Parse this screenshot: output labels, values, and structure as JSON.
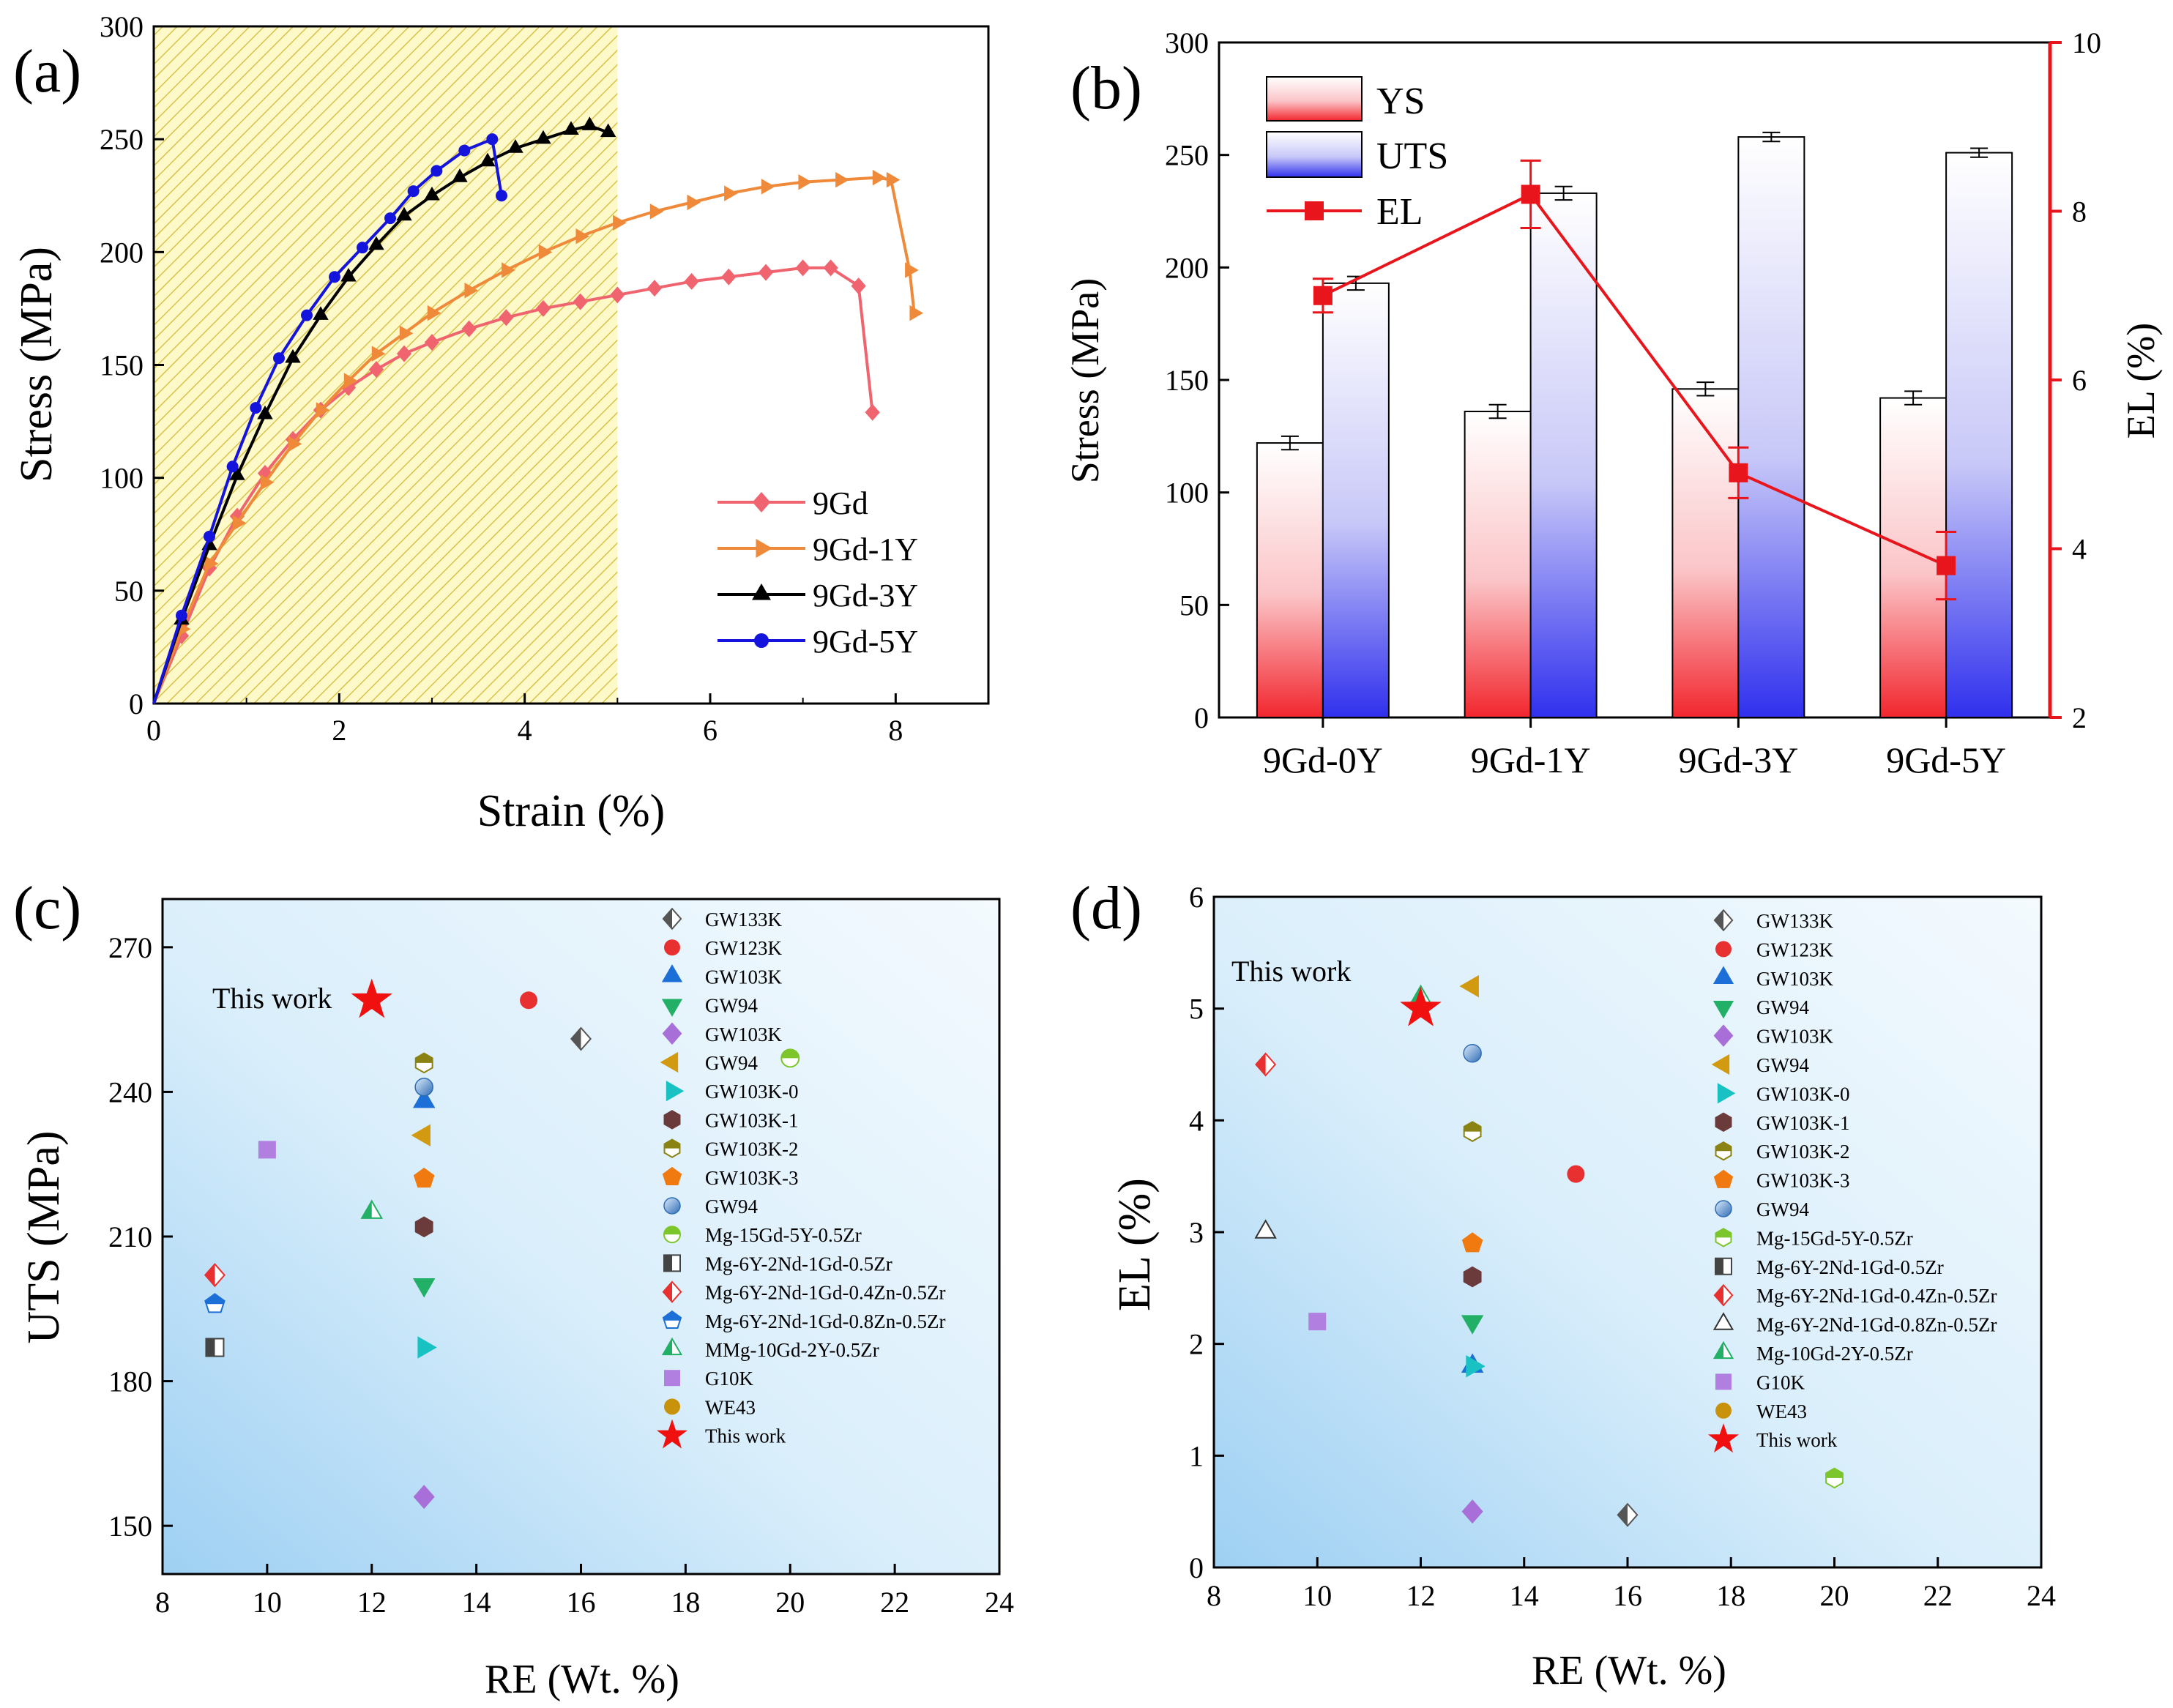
{
  "colors": {
    "gd9": "#F06470",
    "gd1y": "#EE8A3A",
    "gd3y": "#000000",
    "gd5y": "#1414DD",
    "el": "#E8161C",
    "hatch_bg": "#FDF9C8",
    "hatch_line": "#D9C24A"
  },
  "chart_data": [
    {
      "panel": "(a)",
      "type": "line",
      "xlabel": "Strain (%)",
      "ylabel": "Stress (MPa)",
      "xlim": [
        0,
        9
      ],
      "ylim": [
        0,
        300
      ],
      "xticks": [
        0,
        2,
        4,
        6,
        8
      ],
      "yticks": [
        0,
        50,
        100,
        150,
        200,
        250,
        300
      ],
      "shaded_region": [
        0,
        5
      ],
      "legend_position": "bottom-right",
      "series": [
        {
          "name": "9Gd",
          "marker": "diamond",
          "color": "#F06470",
          "x": [
            0,
            0.3,
            0.6,
            0.9,
            1.2,
            1.5,
            1.8,
            2.1,
            2.4,
            2.7,
            3.0,
            3.4,
            3.8,
            4.2,
            4.6,
            5.0,
            5.4,
            5.8,
            6.2,
            6.6,
            7.0,
            7.3,
            7.6,
            7.75
          ],
          "y": [
            0,
            30,
            60,
            83,
            102,
            117,
            130,
            140,
            148,
            155,
            160,
            166,
            171,
            175,
            178,
            181,
            184,
            187,
            189,
            191,
            193,
            193,
            185,
            129
          ]
        },
        {
          "name": "9Gd-1Y",
          "marker": "triangle-right",
          "color": "#EE8A3A",
          "x": [
            0,
            0.3,
            0.6,
            0.9,
            1.2,
            1.5,
            1.8,
            2.1,
            2.4,
            2.7,
            3.0,
            3.4,
            3.8,
            4.2,
            4.6,
            5.0,
            5.4,
            5.8,
            6.2,
            6.6,
            7.0,
            7.4,
            7.8,
            7.95,
            8.15,
            8.2
          ],
          "y": [
            0,
            33,
            62,
            80,
            98,
            115,
            130,
            143,
            155,
            164,
            173,
            183,
            192,
            200,
            207,
            213,
            218,
            222,
            226,
            229,
            231,
            232,
            233,
            232,
            192,
            173
          ]
        },
        {
          "name": "9Gd-3Y",
          "marker": "triangle-up",
          "color": "#000000",
          "x": [
            0,
            0.3,
            0.6,
            0.9,
            1.2,
            1.5,
            1.8,
            2.1,
            2.4,
            2.7,
            3.0,
            3.3,
            3.6,
            3.9,
            4.2,
            4.5,
            4.7,
            4.9
          ],
          "y": [
            0,
            37,
            70,
            101,
            128,
            153,
            172,
            189,
            203,
            216,
            225,
            233,
            240,
            246,
            250,
            254,
            256,
            253
          ]
        },
        {
          "name": "9Gd-5Y",
          "marker": "circle",
          "color": "#1414DD",
          "x": [
            0,
            0.3,
            0.6,
            0.85,
            1.1,
            1.35,
            1.65,
            1.95,
            2.25,
            2.55,
            2.8,
            3.05,
            3.35,
            3.65,
            3.75
          ],
          "y": [
            0,
            39,
            74,
            105,
            131,
            153,
            172,
            189,
            202,
            215,
            227,
            236,
            245,
            250,
            225
          ]
        }
      ]
    },
    {
      "panel": "(b)",
      "type": "bar",
      "categories": [
        "9Gd-0Y",
        "9Gd-1Y",
        "9Gd-3Y",
        "9Gd-5Y"
      ],
      "ylabel": "Stress (MPa)",
      "ylabel_right": "EL (%)",
      "ylim": [
        0,
        300
      ],
      "ylim_right": [
        2,
        10
      ],
      "yticks": [
        0,
        50,
        100,
        150,
        200,
        250,
        300
      ],
      "yticks_right": [
        2,
        4,
        6,
        8,
        10
      ],
      "legend_position": "top-left",
      "series": [
        {
          "name": "YS",
          "values": [
            122,
            136,
            146,
            142
          ],
          "errors": [
            3,
            3,
            3,
            3
          ]
        },
        {
          "name": "UTS",
          "values": [
            193,
            233,
            258,
            251
          ],
          "errors": [
            3,
            3,
            2,
            2
          ]
        },
        {
          "name": "EL",
          "axis": "right",
          "values": [
            7.0,
            8.2,
            4.9,
            3.8
          ],
          "errors": [
            0.2,
            0.4,
            0.3,
            0.4
          ]
        }
      ]
    },
    {
      "panel": "(c)",
      "type": "scatter",
      "xlabel": "RE (Wt. %)",
      "ylabel": "UTS (MPa)",
      "xlim": [
        8,
        24
      ],
      "ylim": [
        140,
        280
      ],
      "xticks": [
        8,
        10,
        12,
        14,
        16,
        18,
        20,
        22,
        24
      ],
      "yticks": [
        150,
        180,
        210,
        240,
        270
      ],
      "annotation": "This work",
      "legend_position": "top-right",
      "series": [
        {
          "name": "GW133K",
          "marker": "diamond-half",
          "color": "#555555",
          "x": 16,
          "y": 251
        },
        {
          "name": "GW123K",
          "marker": "circle",
          "color": "#E83030",
          "x": 15,
          "y": 259
        },
        {
          "name": "GW103K",
          "marker": "triangle-up",
          "color": "#1C6FD6",
          "x": 13,
          "y": 238
        },
        {
          "name": "GW94",
          "marker": "triangle-down",
          "color": "#22B067",
          "x": 13,
          "y": 200
        },
        {
          "name": "GW103K",
          "marker": "diamond",
          "color": "#A86FD9",
          "x": 13,
          "y": 156
        },
        {
          "name": "GW94",
          "marker": "triangle-left",
          "color": "#D29A10",
          "x": 13,
          "y": 231
        },
        {
          "name": "GW103K-0",
          "marker": "triangle-right",
          "color": "#19C2C2",
          "x": 13,
          "y": 187
        },
        {
          "name": "GW103K-1",
          "marker": "hexagon",
          "color": "#6B3A3A",
          "x": 13,
          "y": 212
        },
        {
          "name": "GW103K-2",
          "marker": "hexagon-half",
          "color": "#8A8212",
          "x": 13,
          "y": 246
        },
        {
          "name": "GW103K-3",
          "marker": "pentagon",
          "color": "#F07A10",
          "x": 13,
          "y": 222
        },
        {
          "name": "GW94",
          "marker": "sphere",
          "color": "#4A86C8",
          "x": 13,
          "y": 241
        },
        {
          "name": "Mg-15Gd-5Y-0.5Zr",
          "marker": "circle-half",
          "color": "#7CC52A",
          "x": 20,
          "y": 247
        },
        {
          "name": "Mg-6Y-2Nd-1Gd-0.5Zr",
          "marker": "square-half",
          "color": "#444444",
          "x": 9,
          "y": 187
        },
        {
          "name": "Mg-6Y-2Nd-1Gd-0.4Zn-0.5Zr",
          "marker": "diamond-half",
          "color": "#E83030",
          "x": 9,
          "y": 202
        },
        {
          "name": "Mg-6Y-2Nd-1Gd-0.8Zn-0.5Zr",
          "marker": "pentagon-half",
          "color": "#1C6FD6",
          "x": 9,
          "y": 196
        },
        {
          "name": "MMg-10Gd-2Y-0.5Zr",
          "marker": "triangle-half",
          "color": "#22B067",
          "x": 12,
          "y": 215
        },
        {
          "name": "G10K",
          "marker": "square",
          "color": "#B07FE0",
          "x": 10,
          "y": 228
        },
        {
          "name": "WE43",
          "marker": "circle",
          "color": "#C8920A",
          "x": null,
          "y": null
        },
        {
          "name": "This work",
          "marker": "star",
          "color": "#F01010",
          "x": 12,
          "y": 259
        }
      ]
    },
    {
      "panel": "(d)",
      "type": "scatter",
      "xlabel": "RE (Wt. %)",
      "ylabel": "EL (%)",
      "xlim": [
        8,
        24
      ],
      "ylim": [
        0,
        6
      ],
      "xticks": [
        8,
        10,
        12,
        14,
        16,
        18,
        20,
        22,
        24
      ],
      "yticks": [
        0,
        1,
        2,
        3,
        4,
        5,
        6
      ],
      "annotation": "This work",
      "legend_position": "top-right",
      "series": [
        {
          "name": "GW133K",
          "marker": "diamond-half",
          "color": "#555555",
          "x": 16,
          "y": 0.47
        },
        {
          "name": "GW123K",
          "marker": "circle",
          "color": "#E83030",
          "x": 15,
          "y": 3.52
        },
        {
          "name": "GW103K",
          "marker": "triangle-up",
          "color": "#1C6FD6",
          "x": 13,
          "y": 1.8
        },
        {
          "name": "GW94",
          "marker": "triangle-down",
          "color": "#22B067",
          "x": 13,
          "y": 2.2
        },
        {
          "name": "GW103K",
          "marker": "diamond",
          "color": "#A86FD9",
          "x": 13,
          "y": 0.5
        },
        {
          "name": "GW94",
          "marker": "triangle-left",
          "color": "#D29A10",
          "x": 13,
          "y": 5.2
        },
        {
          "name": "GW103K-0",
          "marker": "triangle-right",
          "color": "#19C2C2",
          "x": 13,
          "y": 1.8
        },
        {
          "name": "GW103K-1",
          "marker": "hexagon",
          "color": "#6B3A3A",
          "x": 13,
          "y": 2.6
        },
        {
          "name": "GW103K-2",
          "marker": "hexagon-half",
          "color": "#8A8212",
          "x": 13,
          "y": 3.9
        },
        {
          "name": "GW103K-3",
          "marker": "pentagon",
          "color": "#F07A10",
          "x": 13,
          "y": 2.9
        },
        {
          "name": "GW94",
          "marker": "sphere",
          "color": "#4A86C8",
          "x": 13,
          "y": 4.6
        },
        {
          "name": "Mg-15Gd-5Y-0.5Zr",
          "marker": "hexagon-half",
          "color": "#7CC52A",
          "x": 20,
          "y": 0.8
        },
        {
          "name": "Mg-6Y-2Nd-1Gd-0.5Zr",
          "marker": "square-half",
          "color": "#444444",
          "x": null,
          "y": null
        },
        {
          "name": "Mg-6Y-2Nd-1Gd-0.4Zn-0.5Zr",
          "marker": "diamond-half",
          "color": "#E83030",
          "x": 9,
          "y": 4.5
        },
        {
          "name": "Mg-6Y-2Nd-1Gd-0.8Zn-0.5Zr",
          "marker": "triangle-open",
          "color": "#333333",
          "x": 9,
          "y": 3.0
        },
        {
          "name": "Mg-10Gd-2Y-0.5Zr",
          "marker": "triangle-half",
          "color": "#22B067",
          "x": 12,
          "y": 5.1
        },
        {
          "name": "G10K",
          "marker": "square",
          "color": "#B07FE0",
          "x": 10,
          "y": 2.2
        },
        {
          "name": "WE43",
          "marker": "circle",
          "color": "#C8920A",
          "x": null,
          "y": null
        },
        {
          "name": "This work",
          "marker": "star",
          "color": "#F01010",
          "x": 12,
          "y": 5.0
        }
      ]
    }
  ]
}
